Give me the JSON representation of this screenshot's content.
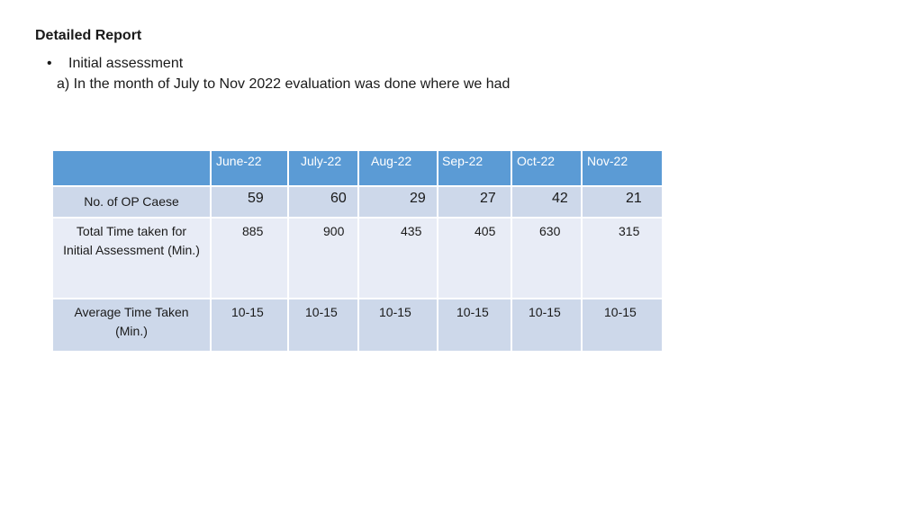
{
  "heading": "Detailed Report",
  "bullet": {
    "symbol": "•",
    "text": "Initial assessment"
  },
  "subtext": "a) In the month of July to Nov 2022 evaluation was done where we had",
  "table": {
    "corner": "",
    "columns": [
      "June-22",
      "July-22",
      "Aug-22",
      "Sep-22",
      "Oct-22",
      "Nov-22"
    ],
    "rows": [
      {
        "label": "No. of OP Caese",
        "values": [
          "59",
          "60",
          "29",
          "27",
          "42",
          "21"
        ]
      },
      {
        "label": "Total Time taken for Initial Assessment (Min.)",
        "values": [
          "885",
          "900",
          "435",
          "405",
          "630",
          "315"
        ]
      },
      {
        "label": "Average Time Taken (Min.)",
        "values": [
          "10-15",
          "10-15",
          "10-15",
          "10-15",
          "10-15",
          "10-15"
        ]
      }
    ]
  },
  "colors": {
    "header_bg": "#5b9bd5",
    "row_dark": "#cdd8ea",
    "row_light": "#e8ecf6"
  }
}
